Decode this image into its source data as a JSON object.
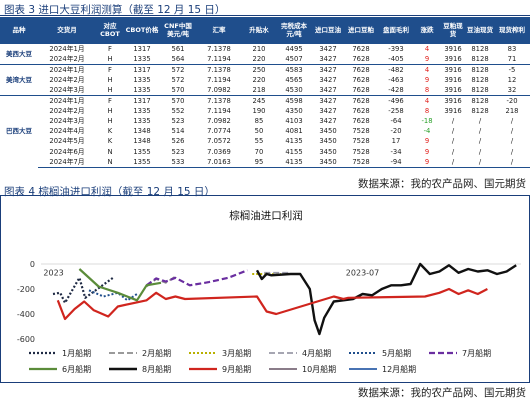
{
  "table_section": {
    "title": "图表 3 进口大豆利润测算（截至 12 月 15 日）",
    "headers": [
      "品种",
      "交货月",
      "对应CBOT",
      "CBOT价格",
      "CNF中国美元/吨",
      "汇率",
      "升贴水",
      "完税成本元/吨",
      "进口豆油",
      "进口豆粕",
      "盘面毛利",
      "涨跌",
      "豆粕现货",
      "豆油现货",
      "现货榨利"
    ],
    "groups": [
      {
        "name": "美西大豆",
        "rows": [
          [
            "2024年1月",
            "F",
            "1317",
            "561",
            "7.1378",
            "210",
            "4495",
            "3427",
            "7628",
            "-393",
            "4",
            "3916",
            "8128",
            "83"
          ],
          [
            "2024年2月",
            "H",
            "1335",
            "564",
            "7.1194",
            "220",
            "4507",
            "3427",
            "7628",
            "-405",
            "9",
            "3916",
            "8128",
            "71"
          ]
        ]
      },
      {
        "name": "美湾大豆",
        "rows": [
          [
            "2024年1月",
            "F",
            "1317",
            "572",
            "7.1378",
            "250",
            "4583",
            "3427",
            "7628",
            "-482",
            "4",
            "3916",
            "8128",
            "-5"
          ],
          [
            "2024年2月",
            "H",
            "1335",
            "572",
            "7.1194",
            "220",
            "4565",
            "3427",
            "7628",
            "-463",
            "9",
            "3916",
            "8128",
            "12"
          ],
          [
            "2024年3月",
            "H",
            "1335",
            "570",
            "7.0982",
            "218",
            "4530",
            "3427",
            "7628",
            "-428",
            "8",
            "3916",
            "8128",
            "32"
          ]
        ]
      },
      {
        "name": "巴西大豆",
        "rows": [
          [
            "2024年1月",
            "F",
            "1317",
            "570",
            "7.1378",
            "245",
            "4598",
            "3427",
            "7628",
            "-496",
            "4",
            "3916",
            "8128",
            "-20"
          ],
          [
            "2024年2月",
            "H",
            "1335",
            "552",
            "7.1194",
            "190",
            "4350",
            "3427",
            "7628",
            "-258",
            "8",
            "3916",
            "8128",
            "218"
          ],
          [
            "2024年3月",
            "H",
            "1335",
            "523",
            "7.0982",
            "85",
            "4103",
            "3427",
            "7628",
            "-64",
            "-18",
            "/",
            "/",
            "/"
          ],
          [
            "2024年4月",
            "K",
            "1348",
            "514",
            "7.0774",
            "50",
            "4081",
            "3450",
            "7528",
            "-20",
            "-4",
            "/",
            "/",
            "/"
          ],
          [
            "2024年5月",
            "K",
            "1348",
            "526",
            "7.0572",
            "55",
            "4135",
            "3450",
            "7528",
            "17",
            "9",
            "/",
            "/",
            "/"
          ],
          [
            "2024年6月",
            "N",
            "1355",
            "523",
            "7.0369",
            "70",
            "4155",
            "3450",
            "7528",
            "-34",
            "9",
            "/",
            "/",
            "/"
          ],
          [
            "2024年7月",
            "N",
            "1355",
            "533",
            "7.0163",
            "95",
            "4135",
            "3450",
            "7528",
            "-94",
            "9",
            "/",
            "/",
            "/"
          ]
        ]
      }
    ],
    "source": "数据来源：我的农产品网、国元期货"
  },
  "chart_section": {
    "title": "图表 4 棕榈油进口利润（截至 12 月 15 日）",
    "source": "数据来源：我的农产品网、国元期货"
  },
  "colors": {
    "header_bg": "#1f4e8c",
    "positive": "#e0201c",
    "negative": "#2aa02a"
  },
  "chart_data": {
    "type": "line",
    "title": "棕榈油进口利润",
    "ylim": [
      -600,
      0
    ],
    "yticks": [
      0,
      -200,
      -400,
      -600
    ],
    "xlim": [
      0,
      100
    ],
    "grid": false,
    "annotations": [
      {
        "text": "2023",
        "x": 0.5,
        "y": -90
      },
      {
        "text": "2023-07",
        "x": 63.5,
        "y": -90
      }
    ],
    "legend_position": "bottom",
    "series": [
      {
        "name": "1月船期",
        "color": "#1f2a44",
        "dash": "2,2",
        "width": 2.2,
        "points": [
          [
            2.5,
            -240
          ],
          [
            4,
            -230
          ],
          [
            5,
            -310
          ],
          [
            8,
            -110
          ],
          [
            9.2,
            -270
          ],
          [
            15,
            -110
          ]
        ]
      },
      {
        "name": "2月船期",
        "color": "#8c8c8c",
        "dash": "6,3",
        "width": 1.8,
        "points": [
          [
            22,
            -180
          ],
          [
            24,
            -120
          ],
          [
            26,
            -150
          ],
          [
            28,
            -100
          ]
        ]
      },
      {
        "name": "3月船期",
        "color": "#b8b000",
        "dash": "2,2",
        "width": 2.0,
        "points": [
          [
            44,
            -80
          ],
          [
            50,
            -80
          ]
        ]
      },
      {
        "name": "4月船期",
        "color": "#9a9aa8",
        "dash": "6,3",
        "width": 1.8,
        "points": [
          [
            46.5,
            -70
          ],
          [
            52,
            -70
          ]
        ]
      },
      {
        "name": "5月船期",
        "color": "#1f4e8c",
        "dash": "2,2",
        "width": 2.0,
        "points": [
          [
            10,
            -210
          ],
          [
            13,
            -260
          ],
          [
            16,
            -230
          ],
          [
            18,
            -290
          ],
          [
            20,
            -240
          ]
        ]
      },
      {
        "name": "7月船期",
        "color": "#6a2ea0",
        "dash": "6,3",
        "width": 2.2,
        "points": [
          [
            22,
            -170
          ],
          [
            24,
            -115
          ],
          [
            26,
            -140
          ],
          [
            28,
            -110
          ],
          [
            31,
            -170
          ],
          [
            35,
            -145
          ],
          [
            39,
            -110
          ],
          [
            43,
            -50
          ]
        ]
      },
      {
        "name": "6月船期",
        "color": "#5b8c3a",
        "dash": "",
        "width": 2.2,
        "points": [
          [
            8,
            -40
          ],
          [
            12,
            -180
          ],
          [
            16,
            -230
          ],
          [
            20,
            -290
          ],
          [
            22,
            -170
          ],
          [
            25,
            -150
          ]
        ]
      },
      {
        "name": "8月船期",
        "color": "#111111",
        "dash": "",
        "width": 2.4,
        "points": [
          [
            45,
            -50
          ],
          [
            46,
            -120
          ],
          [
            47,
            -80
          ],
          [
            48,
            -90
          ],
          [
            52,
            -80
          ],
          [
            54,
            -80
          ],
          [
            56,
            -200
          ],
          [
            57,
            -450
          ],
          [
            58,
            -560
          ],
          [
            59,
            -430
          ],
          [
            61,
            -300
          ],
          [
            63,
            -290
          ],
          [
            65,
            -280
          ],
          [
            67,
            -240
          ],
          [
            69,
            -250
          ],
          [
            71,
            -200
          ],
          [
            73,
            -170
          ],
          [
            75,
            -170
          ],
          [
            77,
            -160
          ],
          [
            78,
            -80
          ],
          [
            79,
            0
          ],
          [
            81,
            -80
          ],
          [
            83,
            -60
          ],
          [
            85,
            -10
          ],
          [
            87,
            -70
          ],
          [
            89,
            -40
          ],
          [
            91,
            -60
          ],
          [
            93,
            -50
          ],
          [
            95,
            -80
          ],
          [
            97,
            -60
          ],
          [
            99,
            -10
          ]
        ]
      },
      {
        "name": "9月船期",
        "color": "#d0251e",
        "dash": "",
        "width": 2.2,
        "points": [
          [
            3.5,
            -290
          ],
          [
            5,
            -440
          ],
          [
            7,
            -360
          ],
          [
            9,
            -300
          ],
          [
            11,
            -370
          ],
          [
            14,
            -420
          ],
          [
            16,
            -340
          ],
          [
            22,
            -290
          ],
          [
            24,
            -230
          ],
          [
            26,
            -280
          ],
          [
            28,
            -260
          ],
          [
            30,
            -280
          ],
          [
            45,
            -260
          ],
          [
            47,
            -380
          ],
          [
            49,
            -400
          ],
          [
            61,
            -260
          ],
          [
            63,
            -280
          ],
          [
            64,
            -270
          ],
          [
            80,
            -260
          ],
          [
            83,
            -230
          ],
          [
            85,
            -200
          ],
          [
            87,
            -240
          ],
          [
            89,
            -210
          ],
          [
            91,
            -240
          ],
          [
            93,
            -200
          ]
        ]
      },
      {
        "name": "10月船期",
        "color": "#7a6a78",
        "dash": "",
        "width": 1.8,
        "points": []
      },
      {
        "name": "12月船期",
        "color": "#2e5fa8",
        "dash": "",
        "width": 1.8,
        "points": []
      }
    ]
  }
}
